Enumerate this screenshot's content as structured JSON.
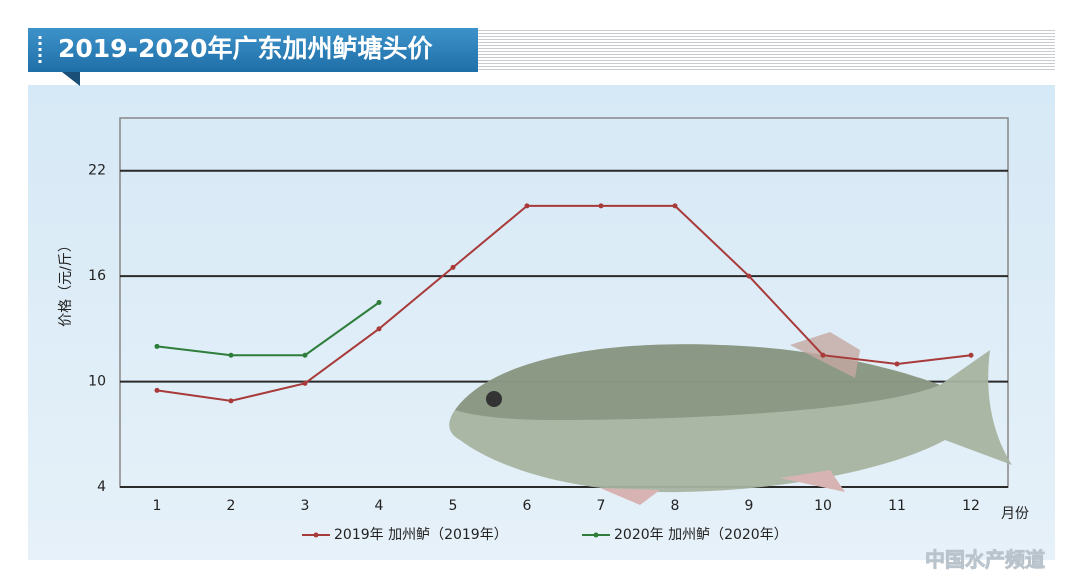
{
  "chart_data": {
    "type": "line",
    "title": "2019-2020年广东加州鲈塘头价",
    "y_label": "价格（元/斤）",
    "x_label": "月份",
    "watermark": "中国水产频道",
    "categories": [
      "1",
      "2",
      "3",
      "4",
      "5",
      "6",
      "7",
      "8",
      "9",
      "10",
      "11",
      "12"
    ],
    "series": [
      {
        "name": "2019年 加州鲈（2019年）",
        "color": "#a83a3a",
        "values": [
          9.5,
          8.9,
          9.9,
          13,
          16.5,
          20,
          20,
          20,
          16,
          11.5,
          11,
          11.5
        ]
      },
      {
        "name": "2020年 加州鲈（2020年）",
        "color": "#2e7d3a",
        "values": [
          12,
          11.5,
          11.5,
          14.5,
          null,
          null,
          null,
          null,
          null,
          null,
          null,
          null
        ]
      }
    ],
    "ylim": [
      4,
      25
    ],
    "yticks": [
      4,
      10,
      16,
      22
    ],
    "grid": true,
    "legend": "bottom"
  }
}
